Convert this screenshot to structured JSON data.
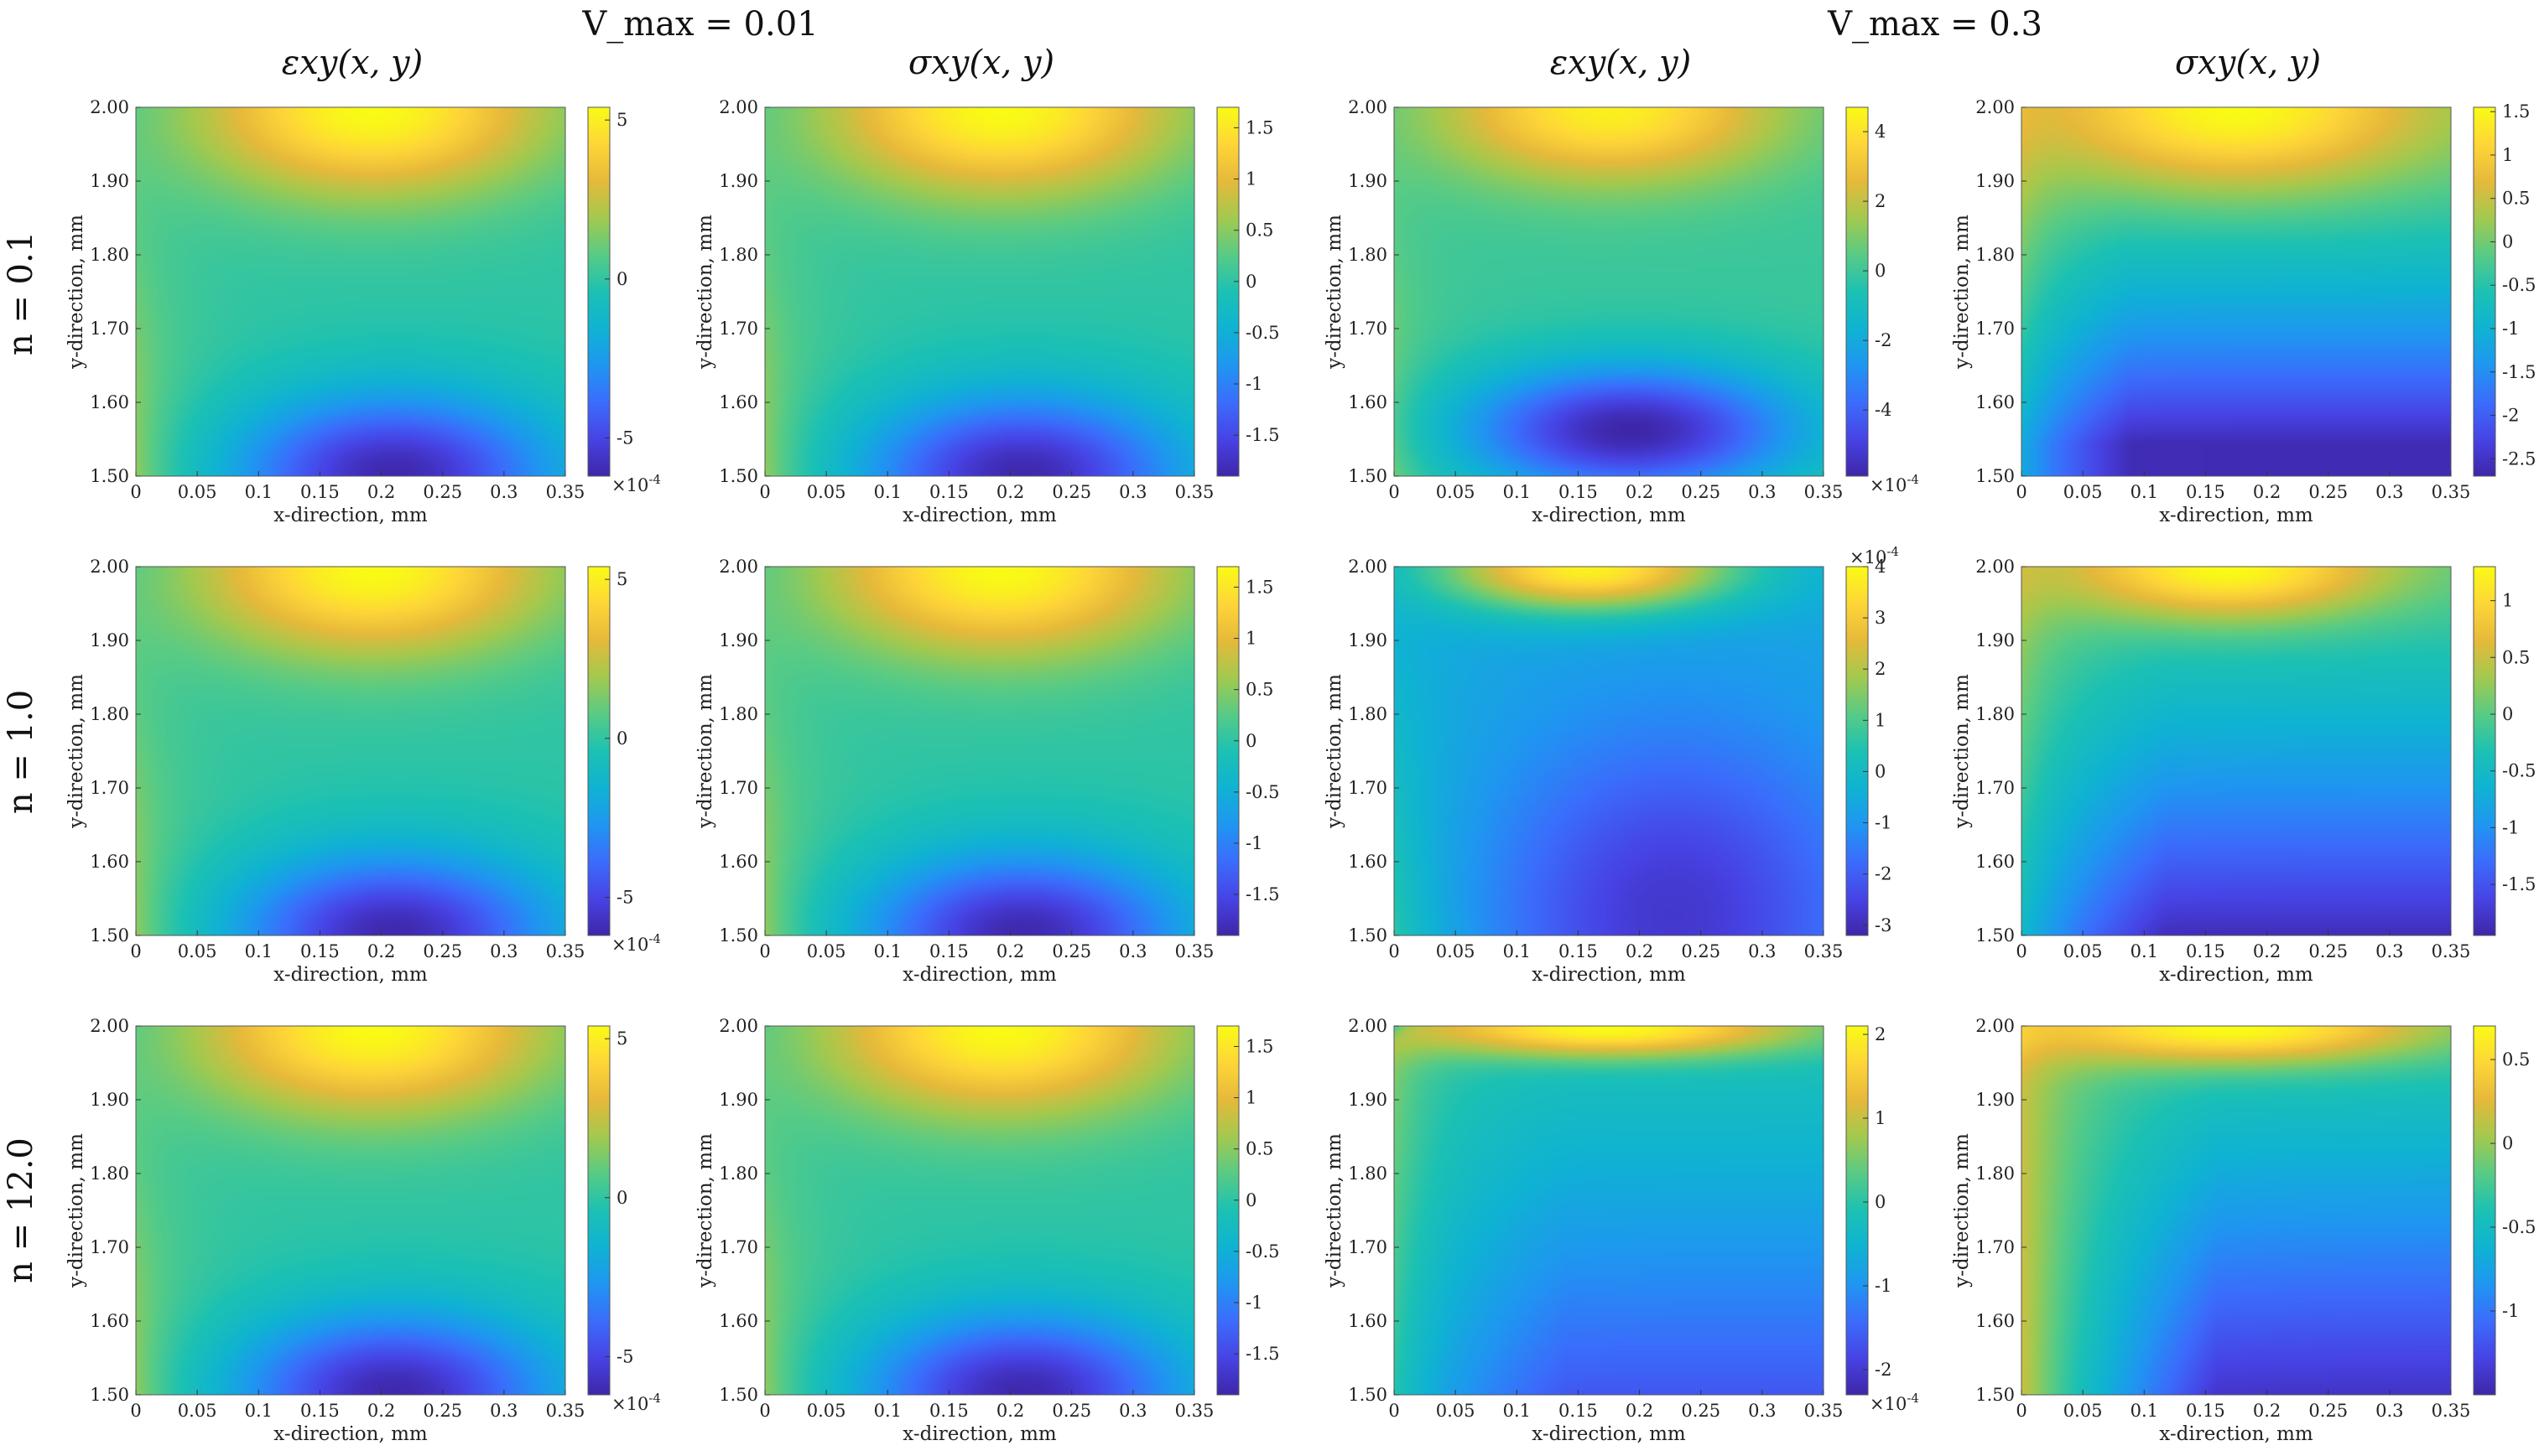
{
  "figure": {
    "group_titles": [
      "V_max = 0.01",
      "V_max = 0.3"
    ],
    "column_titles": [
      "εxy(x, y)",
      "σxy(x, y)",
      "εxy(x, y)",
      "σxy(x, y)"
    ],
    "row_labels": [
      "n = 0.1",
      "n = 1.0",
      "n = 12.0"
    ],
    "colormap": [
      "#3e26a8",
      "#4743e5",
      "#3b6cfc",
      "#1f96f1",
      "#0fb3d2",
      "#1cc1b3",
      "#58cb85",
      "#a3c94e",
      "#e6b93a",
      "#fed638",
      "#f9fb15"
    ]
  },
  "chart_data": [
    {
      "type": "heatmap",
      "row": 0,
      "col": 0,
      "title": "εxy(x, y)",
      "xlabel": "x-direction, mm",
      "ylabel": "y-direction, mm",
      "xlim": [
        0,
        0.35
      ],
      "ylim": [
        1.5,
        2.0
      ],
      "xticks": [
        "0",
        "0.05",
        "0.1",
        "0.15",
        "0.2",
        "0.25",
        "0.3",
        "0.35"
      ],
      "yticks": [
        "1.50",
        "1.60",
        "1.70",
        "1.80",
        "1.90",
        "2.00"
      ],
      "clim": [
        -6.2,
        5.4
      ],
      "cticks": [
        {
          "v": 5,
          "label": "5"
        },
        {
          "v": 0,
          "label": "0"
        },
        {
          "v": -5,
          "label": "-5"
        }
      ],
      "cexp": "×10^-4",
      "cexp_pos": "bottom",
      "field": "A"
    },
    {
      "type": "heatmap",
      "row": 0,
      "col": 1,
      "title": "σxy(x, y)",
      "xlabel": "x-direction, mm",
      "ylabel": "y-direction, mm",
      "xlim": [
        0,
        0.35
      ],
      "ylim": [
        1.5,
        2.0
      ],
      "xticks": [
        "0",
        "0.05",
        "0.1",
        "0.15",
        "0.2",
        "0.25",
        "0.3",
        "0.35"
      ],
      "yticks": [
        "1.50",
        "1.60",
        "1.70",
        "1.80",
        "1.90",
        "2.00"
      ],
      "clim": [
        -1.9,
        1.7
      ],
      "cticks": [
        {
          "v": 1.5,
          "label": "1.5"
        },
        {
          "v": 1,
          "label": "1"
        },
        {
          "v": 0.5,
          "label": "0.5"
        },
        {
          "v": 0,
          "label": "0"
        },
        {
          "v": -0.5,
          "label": "-0.5"
        },
        {
          "v": -1,
          "label": "-1"
        },
        {
          "v": -1.5,
          "label": "-1.5"
        }
      ],
      "cexp": "",
      "cexp_pos": "none",
      "field": "A"
    },
    {
      "type": "heatmap",
      "row": 0,
      "col": 2,
      "title": "εxy(x, y)",
      "xlabel": "x-direction, mm",
      "ylabel": "y-direction, mm",
      "xlim": [
        0,
        0.35
      ],
      "ylim": [
        1.5,
        2.0
      ],
      "xticks": [
        "0",
        "0.05",
        "0.1",
        "0.15",
        "0.2",
        "0.25",
        "0.3",
        "0.35"
      ],
      "yticks": [
        "1.50",
        "1.60",
        "1.70",
        "1.80",
        "1.90",
        "2.00"
      ],
      "clim": [
        -5.9,
        4.7
      ],
      "cticks": [
        {
          "v": 4,
          "label": "4"
        },
        {
          "v": 2,
          "label": "2"
        },
        {
          "v": 0,
          "label": "0"
        },
        {
          "v": -2,
          "label": "-2"
        },
        {
          "v": -4,
          "label": "-4"
        }
      ],
      "cexp": "×10^-4",
      "cexp_pos": "bottom",
      "field": "B"
    },
    {
      "type": "heatmap",
      "row": 0,
      "col": 3,
      "title": "σxy(x, y)",
      "xlabel": "x-direction, mm",
      "ylabel": "y-direction, mm",
      "xlim": [
        0,
        0.35
      ],
      "ylim": [
        1.5,
        2.0
      ],
      "xticks": [
        "0",
        "0.05",
        "0.1",
        "0.15",
        "0.2",
        "0.25",
        "0.3",
        "0.35"
      ],
      "yticks": [
        "1.50",
        "1.60",
        "1.70",
        "1.80",
        "1.90",
        "2.00"
      ],
      "clim": [
        -2.7,
        1.55
      ],
      "cticks": [
        {
          "v": 1.5,
          "label": "1.5"
        },
        {
          "v": 1,
          "label": "1"
        },
        {
          "v": 0.5,
          "label": "0.5"
        },
        {
          "v": 0,
          "label": "0"
        },
        {
          "v": -0.5,
          "label": "-0.5"
        },
        {
          "v": -1,
          "label": "-1"
        },
        {
          "v": -1.5,
          "label": "-1.5"
        },
        {
          "v": -2,
          "label": "-2"
        },
        {
          "v": -2.5,
          "label": "-2.5"
        }
      ],
      "cexp": "",
      "cexp_pos": "none",
      "field": "C"
    },
    {
      "type": "heatmap",
      "row": 1,
      "col": 0,
      "title": "εxy(x, y)",
      "xlabel": "x-direction, mm",
      "ylabel": "y-direction, mm",
      "xlim": [
        0,
        0.35
      ],
      "ylim": [
        1.5,
        2.0
      ],
      "xticks": [
        "0",
        "0.05",
        "0.1",
        "0.15",
        "0.2",
        "0.25",
        "0.3",
        "0.35"
      ],
      "yticks": [
        "1.50",
        "1.60",
        "1.70",
        "1.80",
        "1.90",
        "2.00"
      ],
      "clim": [
        -6.2,
        5.4
      ],
      "cticks": [
        {
          "v": 5,
          "label": "5"
        },
        {
          "v": 0,
          "label": "0"
        },
        {
          "v": -5,
          "label": "-5"
        }
      ],
      "cexp": "×10^-4",
      "cexp_pos": "bottom",
      "field": "A"
    },
    {
      "type": "heatmap",
      "row": 1,
      "col": 1,
      "title": "σxy(x, y)",
      "xlabel": "x-direction, mm",
      "ylabel": "y-direction, mm",
      "xlim": [
        0,
        0.35
      ],
      "ylim": [
        1.5,
        2.0
      ],
      "xticks": [
        "0",
        "0.05",
        "0.1",
        "0.15",
        "0.2",
        "0.25",
        "0.3",
        "0.35"
      ],
      "yticks": [
        "1.50",
        "1.60",
        "1.70",
        "1.80",
        "1.90",
        "2.00"
      ],
      "clim": [
        -1.9,
        1.7
      ],
      "cticks": [
        {
          "v": 1.5,
          "label": "1.5"
        },
        {
          "v": 1,
          "label": "1"
        },
        {
          "v": 0.5,
          "label": "0.5"
        },
        {
          "v": 0,
          "label": "0"
        },
        {
          "v": -0.5,
          "label": "-0.5"
        },
        {
          "v": -1,
          "label": "-1"
        },
        {
          "v": -1.5,
          "label": "-1.5"
        }
      ],
      "cexp": "",
      "cexp_pos": "none",
      "field": "A"
    },
    {
      "type": "heatmap",
      "row": 1,
      "col": 2,
      "title": "εxy(x, y)",
      "xlabel": "x-direction, mm",
      "ylabel": "y-direction, mm",
      "xlim": [
        0,
        0.35
      ],
      "ylim": [
        1.5,
        2.0
      ],
      "xticks": [
        "0",
        "0.05",
        "0.1",
        "0.15",
        "0.2",
        "0.25",
        "0.3",
        "0.35"
      ],
      "yticks": [
        "1.50",
        "1.60",
        "1.70",
        "1.80",
        "1.90",
        "2.00"
      ],
      "clim": [
        -3.2,
        4.0
      ],
      "cticks": [
        {
          "v": 4,
          "label": "4"
        },
        {
          "v": 3,
          "label": "3"
        },
        {
          "v": 2,
          "label": "2"
        },
        {
          "v": 1,
          "label": "1"
        },
        {
          "v": 0,
          "label": "0"
        },
        {
          "v": -1,
          "label": "-1"
        },
        {
          "v": -2,
          "label": "-2"
        },
        {
          "v": -3,
          "label": "-3"
        }
      ],
      "cexp": "×10^-4",
      "cexp_pos": "top",
      "field": "D"
    },
    {
      "type": "heatmap",
      "row": 1,
      "col": 3,
      "title": "σxy(x, y)",
      "xlabel": "x-direction, mm",
      "ylabel": "y-direction, mm",
      "xlim": [
        0,
        0.35
      ],
      "ylim": [
        1.5,
        2.0
      ],
      "xticks": [
        "0",
        "0.05",
        "0.1",
        "0.15",
        "0.2",
        "0.25",
        "0.3",
        "0.35"
      ],
      "yticks": [
        "1.50",
        "1.60",
        "1.70",
        "1.80",
        "1.90",
        "2.00"
      ],
      "clim": [
        -1.95,
        1.3
      ],
      "cticks": [
        {
          "v": 1,
          "label": "1"
        },
        {
          "v": 0.5,
          "label": "0.5"
        },
        {
          "v": 0,
          "label": "0"
        },
        {
          "v": -0.5,
          "label": "-0.5"
        },
        {
          "v": -1,
          "label": "-1"
        },
        {
          "v": -1.5,
          "label": "-1.5"
        }
      ],
      "cexp": "",
      "cexp_pos": "none",
      "field": "E"
    },
    {
      "type": "heatmap",
      "row": 2,
      "col": 0,
      "title": "εxy(x, y)",
      "xlabel": "x-direction, mm",
      "ylabel": "y-direction, mm",
      "xlim": [
        0,
        0.35
      ],
      "ylim": [
        1.5,
        2.0
      ],
      "xticks": [
        "0",
        "0.05",
        "0.1",
        "0.15",
        "0.2",
        "0.25",
        "0.3",
        "0.35"
      ],
      "yticks": [
        "1.50",
        "1.60",
        "1.70",
        "1.80",
        "1.90",
        "2.00"
      ],
      "clim": [
        -6.2,
        5.4
      ],
      "cticks": [
        {
          "v": 5,
          "label": "5"
        },
        {
          "v": 0,
          "label": "0"
        },
        {
          "v": -5,
          "label": "-5"
        }
      ],
      "cexp": "×10^-4",
      "cexp_pos": "bottom",
      "field": "A"
    },
    {
      "type": "heatmap",
      "row": 2,
      "col": 1,
      "title": "σxy(x, y)",
      "xlabel": "x-direction, mm",
      "ylabel": "y-direction, mm",
      "xlim": [
        0,
        0.35
      ],
      "ylim": [
        1.5,
        2.0
      ],
      "xticks": [
        "0",
        "0.05",
        "0.1",
        "0.15",
        "0.2",
        "0.25",
        "0.3",
        "0.35"
      ],
      "yticks": [
        "1.50",
        "1.60",
        "1.70",
        "1.80",
        "1.90",
        "2.00"
      ],
      "clim": [
        -1.9,
        1.7
      ],
      "cticks": [
        {
          "v": 1.5,
          "label": "1.5"
        },
        {
          "v": 1,
          "label": "1"
        },
        {
          "v": 0.5,
          "label": "0.5"
        },
        {
          "v": 0,
          "label": "0"
        },
        {
          "v": -0.5,
          "label": "-0.5"
        },
        {
          "v": -1,
          "label": "-1"
        },
        {
          "v": -1.5,
          "label": "-1.5"
        }
      ],
      "cexp": "",
      "cexp_pos": "none",
      "field": "A"
    },
    {
      "type": "heatmap",
      "row": 2,
      "col": 2,
      "title": "εxy(x, y)",
      "xlabel": "x-direction, mm",
      "ylabel": "y-direction, mm",
      "xlim": [
        0,
        0.35
      ],
      "ylim": [
        1.5,
        2.0
      ],
      "xticks": [
        "0",
        "0.05",
        "0.1",
        "0.15",
        "0.2",
        "0.25",
        "0.3",
        "0.35"
      ],
      "yticks": [
        "1.50",
        "1.60",
        "1.70",
        "1.80",
        "1.90",
        "2.00"
      ],
      "clim": [
        -2.3,
        2.1
      ],
      "cticks": [
        {
          "v": 2,
          "label": "2"
        },
        {
          "v": 1,
          "label": "1"
        },
        {
          "v": 0,
          "label": "0"
        },
        {
          "v": -1,
          "label": "-1"
        },
        {
          "v": -2,
          "label": "-2"
        }
      ],
      "cexp": "×10^-4",
      "cexp_pos": "bottom",
      "field": "F"
    },
    {
      "type": "heatmap",
      "row": 2,
      "col": 3,
      "title": "σxy(x, y)",
      "xlabel": "x-direction, mm",
      "ylabel": "y-direction, mm",
      "xlim": [
        0,
        0.35
      ],
      "ylim": [
        1.5,
        2.0
      ],
      "xticks": [
        "0",
        "0.05",
        "0.1",
        "0.15",
        "0.2",
        "0.25",
        "0.3",
        "0.35"
      ],
      "yticks": [
        "1.50",
        "1.60",
        "1.70",
        "1.80",
        "1.90",
        "2.00"
      ],
      "clim": [
        -1.5,
        0.7
      ],
      "cticks": [
        {
          "v": 0.5,
          "label": "0.5"
        },
        {
          "v": 0,
          "label": "0"
        },
        {
          "v": -0.5,
          "label": "-0.5"
        },
        {
          "v": -1,
          "label": "-1"
        }
      ],
      "cexp": "",
      "cexp_pos": "none",
      "field": "G"
    }
  ]
}
